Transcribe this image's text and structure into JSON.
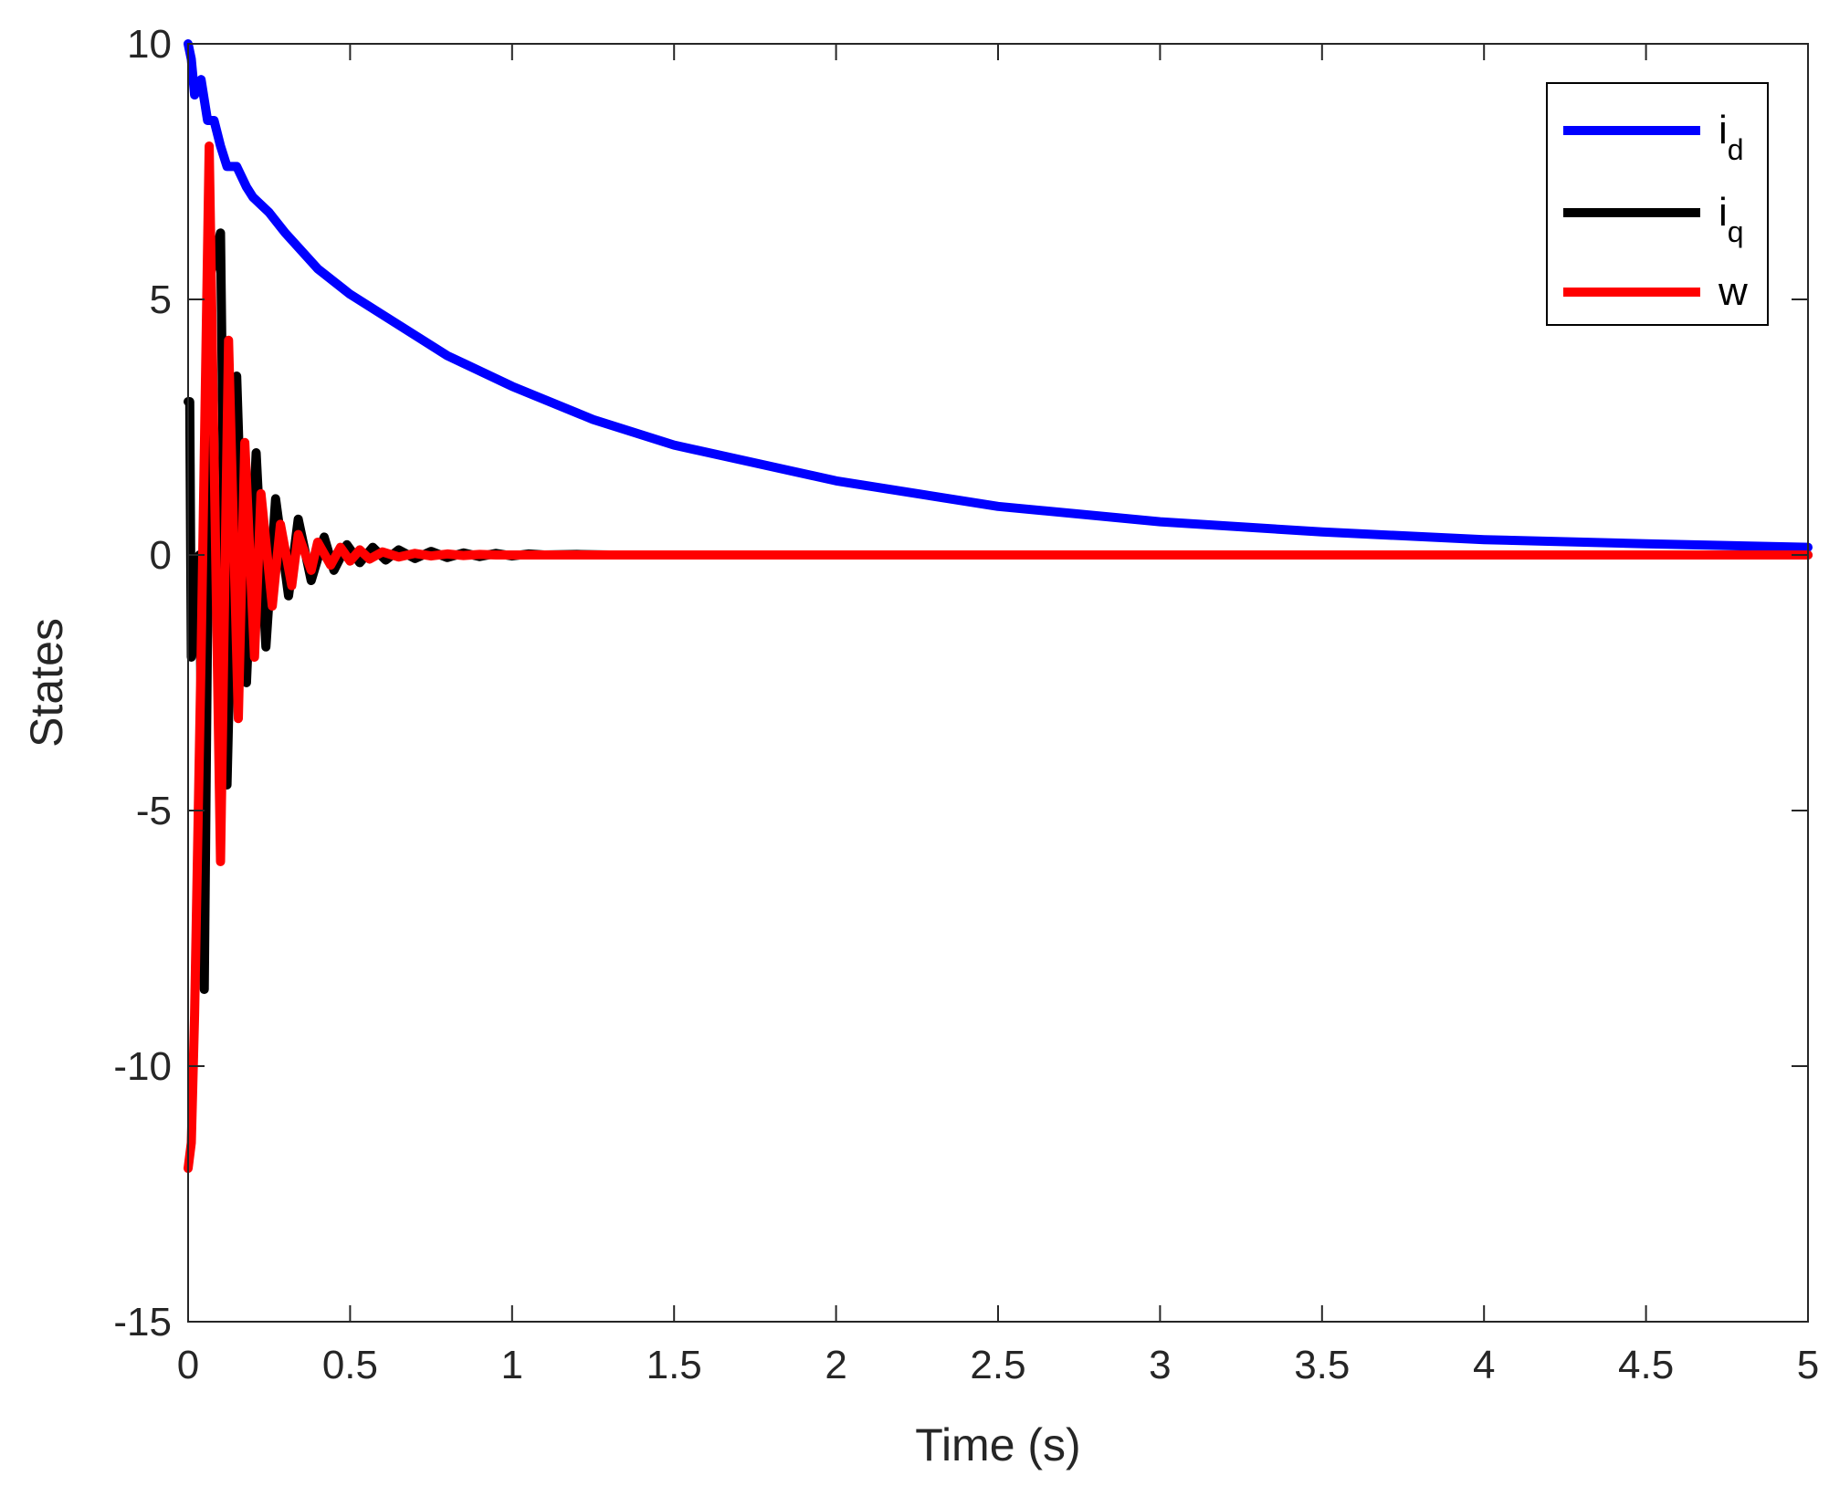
{
  "chart_data": {
    "type": "line",
    "xlabel": "Time (s)",
    "ylabel": "States",
    "xlim": [
      0,
      5
    ],
    "ylim": [
      -15,
      10
    ],
    "grid": false,
    "legend_position": "top-right",
    "x_ticks": [
      0,
      0.5,
      1,
      1.5,
      2,
      2.5,
      3,
      3.5,
      4,
      4.5,
      5
    ],
    "x_tick_labels": [
      "0",
      "0.5",
      "1",
      "1.5",
      "2",
      "2.5",
      "3",
      "3.5",
      "4",
      "4.5",
      "5"
    ],
    "y_ticks": [
      10,
      5,
      0,
      -5,
      -10,
      -15
    ],
    "y_tick_labels": [
      "10",
      "5",
      "0",
      "-5",
      "-10",
      "-15"
    ],
    "series": [
      {
        "name": "i_d",
        "legend_main": "i",
        "legend_sub": "d",
        "color": "#0000ff",
        "x": [
          0,
          0.01,
          0.02,
          0.04,
          0.06,
          0.08,
          0.1,
          0.12,
          0.15,
          0.18,
          0.2,
          0.25,
          0.3,
          0.4,
          0.5,
          0.6,
          0.8,
          1.0,
          1.25,
          1.5,
          2.0,
          2.5,
          3.0,
          3.5,
          4.0,
          4.5,
          5.0
        ],
        "y": [
          10.0,
          9.7,
          9.0,
          9.3,
          8.5,
          8.5,
          8.0,
          7.6,
          7.6,
          7.2,
          7.0,
          6.7,
          6.3,
          5.6,
          5.1,
          4.7,
          3.9,
          3.3,
          2.65,
          2.15,
          1.45,
          0.95,
          0.65,
          0.45,
          0.3,
          0.22,
          0.15
        ]
      },
      {
        "name": "i_q",
        "legend_main": "i",
        "legend_sub": "q",
        "color": "#000000",
        "x": [
          0,
          0.005,
          0.01,
          0.02,
          0.035,
          0.05,
          0.07,
          0.1,
          0.12,
          0.15,
          0.18,
          0.21,
          0.24,
          0.27,
          0.31,
          0.34,
          0.38,
          0.42,
          0.45,
          0.49,
          0.53,
          0.57,
          0.61,
          0.65,
          0.7,
          0.75,
          0.8,
          0.85,
          0.9,
          0.95,
          1.0,
          1.05,
          1.1,
          1.2,
          1.3,
          1.5,
          2.0,
          3.0,
          4.0,
          5.0
        ],
        "y": [
          3.0,
          3.0,
          -2.0,
          -1.0,
          0.0,
          -8.5,
          5.5,
          6.3,
          -4.5,
          3.5,
          -2.5,
          2.0,
          -1.8,
          1.1,
          -0.8,
          0.7,
          -0.5,
          0.35,
          -0.3,
          0.2,
          -0.15,
          0.15,
          -0.1,
          0.1,
          -0.07,
          0.07,
          -0.05,
          0.04,
          -0.03,
          0.03,
          -0.02,
          0.02,
          0.0,
          0.01,
          0.0,
          0.0,
          0.0,
          0.0,
          0.0,
          0.0
        ]
      },
      {
        "name": "w",
        "legend_main": "w",
        "legend_sub": "",
        "color": "#ff0000",
        "x": [
          0,
          0.01,
          0.02,
          0.04,
          0.065,
          0.1,
          0.125,
          0.155,
          0.175,
          0.205,
          0.225,
          0.26,
          0.285,
          0.32,
          0.34,
          0.38,
          0.4,
          0.44,
          0.47,
          0.5,
          0.53,
          0.56,
          0.6,
          0.65,
          0.7,
          0.75,
          0.8,
          0.85,
          0.9,
          0.95,
          1.0,
          1.1,
          1.2,
          1.4,
          2.0,
          3.0,
          4.0,
          5.0
        ],
        "y": [
          -12.0,
          -11.5,
          -9.0,
          -2.0,
          8.0,
          -6.0,
          4.2,
          -3.2,
          2.2,
          -2.0,
          1.2,
          -1.0,
          0.6,
          -0.6,
          0.4,
          -0.3,
          0.25,
          -0.2,
          0.15,
          -0.12,
          0.1,
          -0.08,
          0.06,
          -0.04,
          0.03,
          -0.02,
          0.02,
          -0.01,
          0.01,
          0.0,
          0.0,
          0.0,
          0.0,
          0.0,
          0.0,
          0.0,
          0.0,
          0.0
        ]
      }
    ]
  }
}
